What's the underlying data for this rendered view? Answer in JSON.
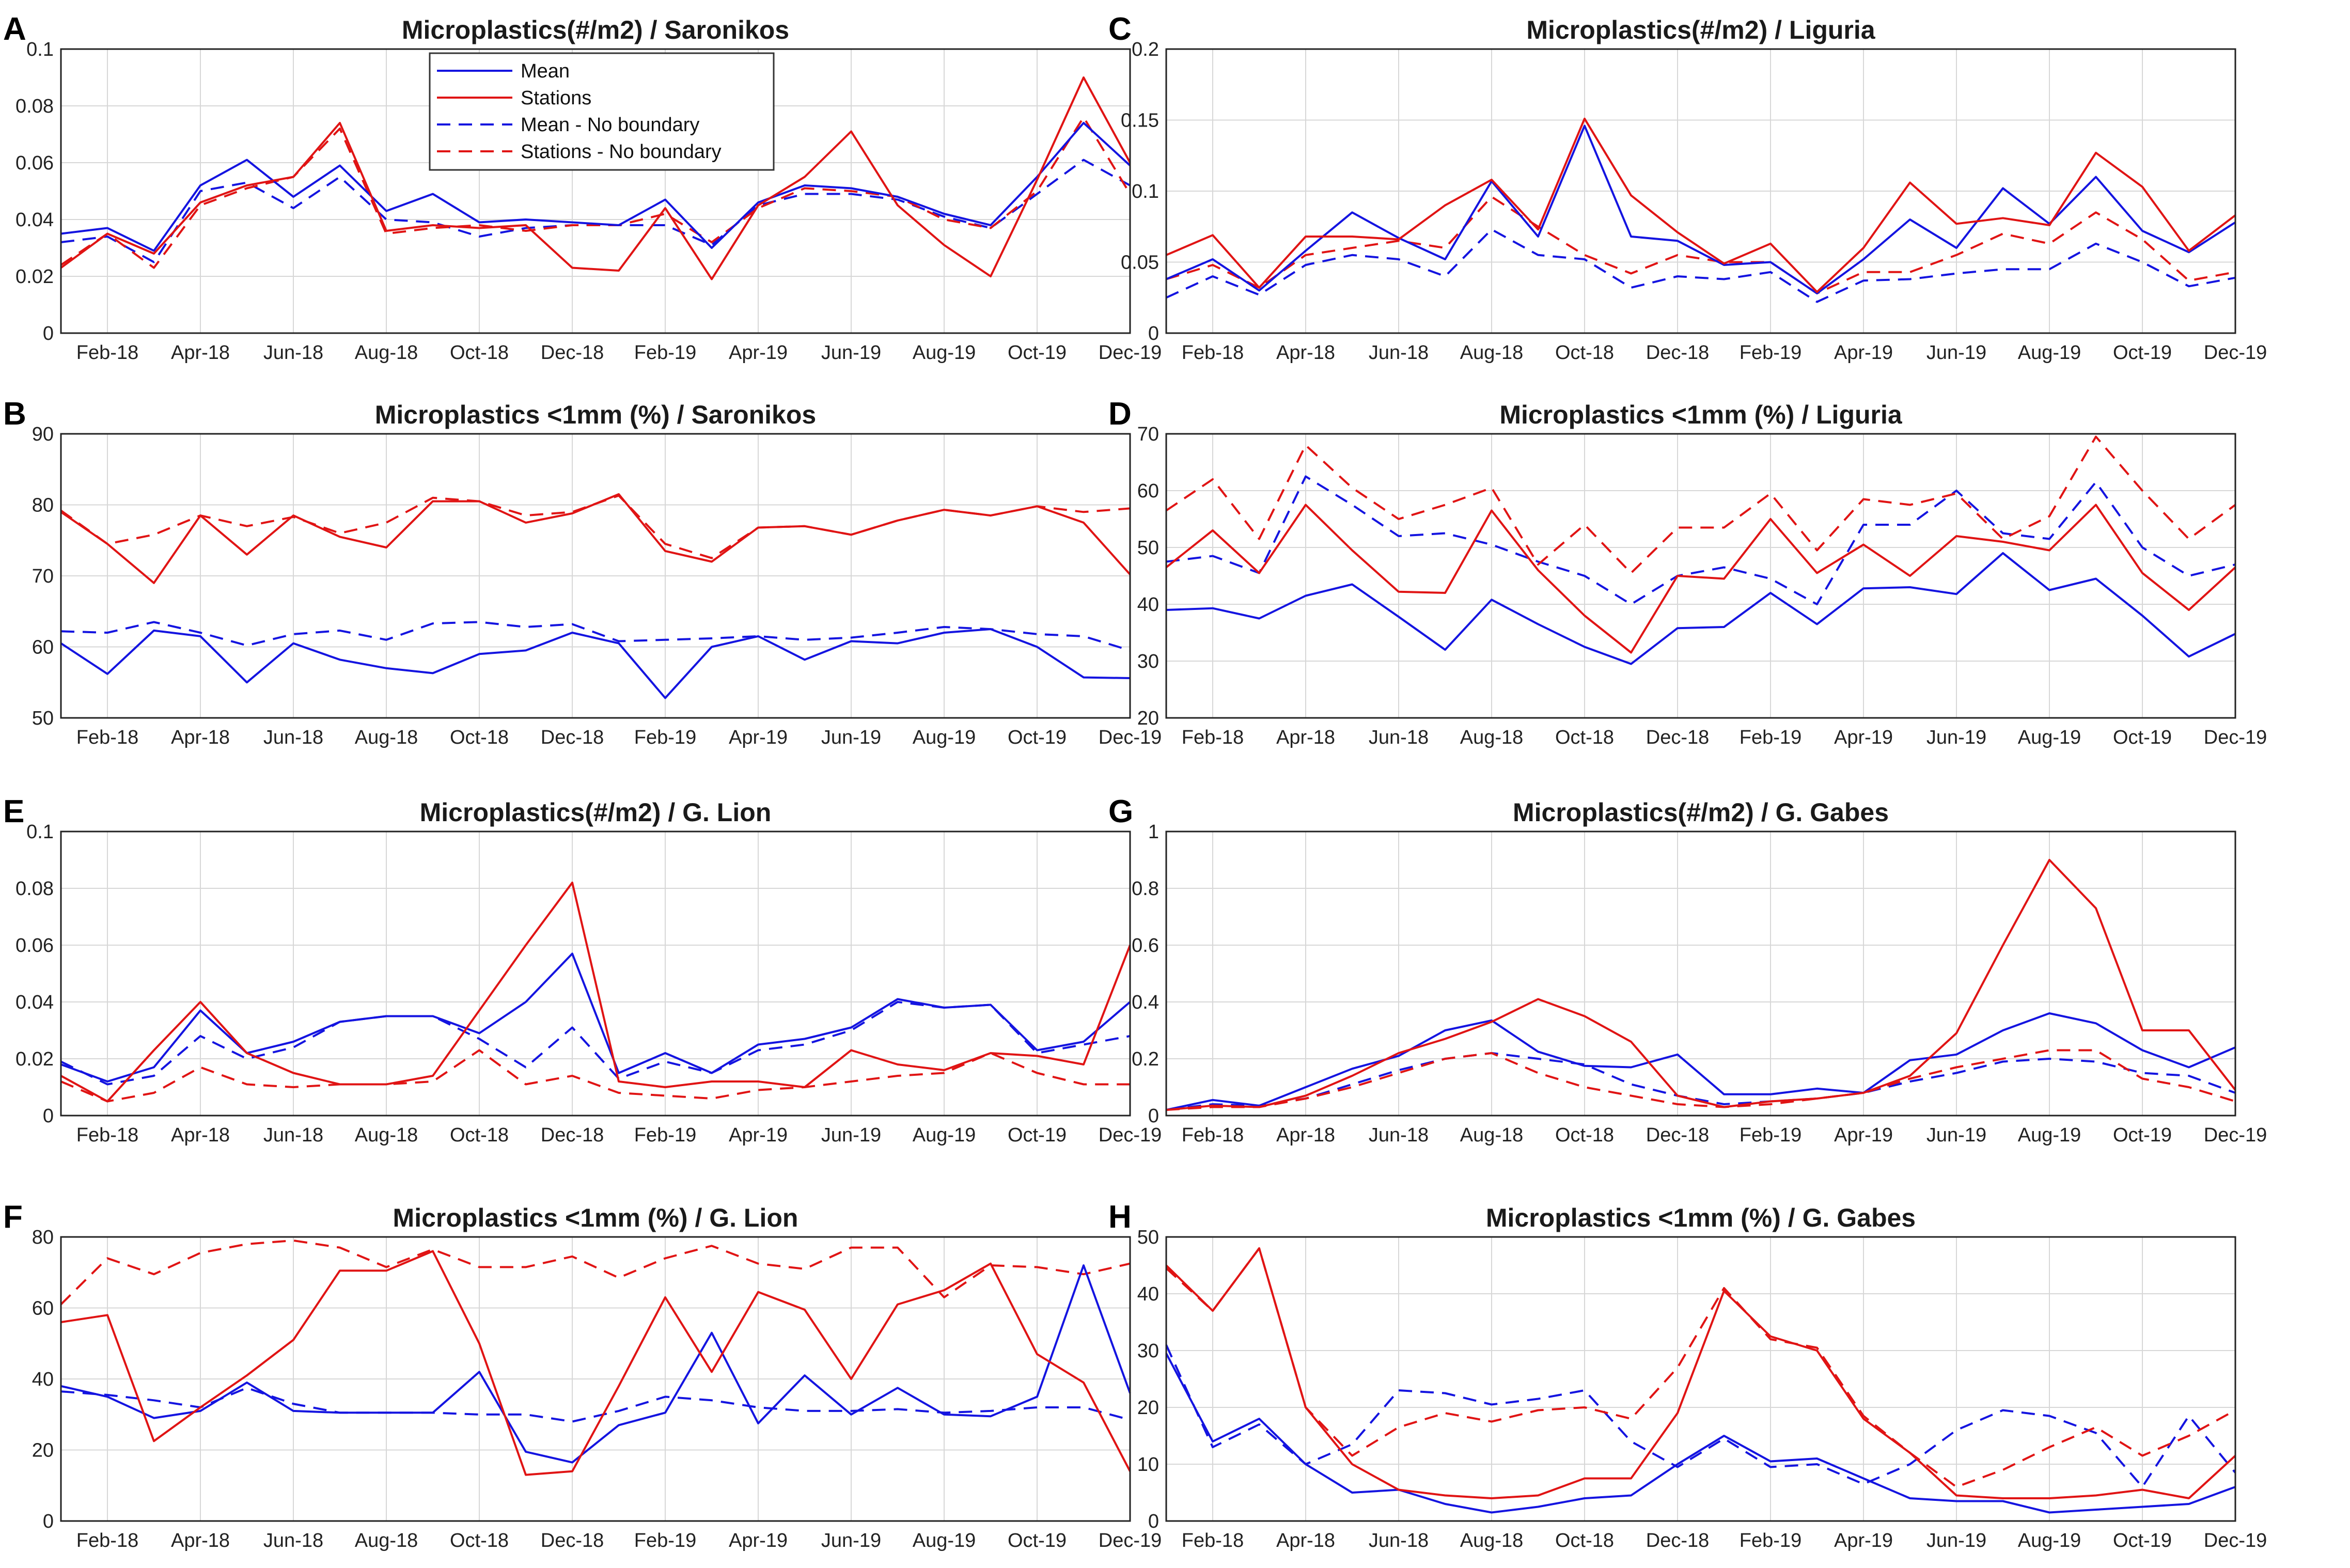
{
  "figure": {
    "x_tick_labels": [
      "Feb-18",
      "Apr-18",
      "Jun-18",
      "Aug-18",
      "Oct-18",
      "Dec-18",
      "Feb-19",
      "Apr-19",
      "Jun-19",
      "Aug-19",
      "Oct-19",
      "Dec-19"
    ],
    "colors": {
      "mean": "#1414e0",
      "stations": "#e01414"
    },
    "legend": {
      "entries": [
        "Mean",
        "Stations",
        "Mean - No boundary",
        "Stations - No boundary"
      ],
      "placement": "top-left, panel A"
    }
  },
  "chart_data": [
    {
      "letter": "A",
      "type": "line",
      "title": "Microplastics(#/m2) / Saronikos",
      "ylim": [
        0,
        0.1
      ],
      "yticks": [
        "0",
        "0.02",
        "0.04",
        "0.06",
        "0.08",
        "0.1"
      ],
      "series": [
        {
          "name": "Mean",
          "values": [
            0.035,
            0.037,
            0.029,
            0.052,
            0.061,
            0.048,
            0.059,
            0.043,
            0.049,
            0.039,
            0.04,
            0.039,
            0.038,
            0.047,
            0.03,
            0.046,
            0.052,
            0.051,
            0.048,
            0.042,
            0.038,
            0.055,
            0.074,
            0.059
          ]
        },
        {
          "name": "Stations",
          "values": [
            0.023,
            0.035,
            0.028,
            0.046,
            0.052,
            0.055,
            0.074,
            0.036,
            0.038,
            0.037,
            0.038,
            0.023,
            0.022,
            0.044,
            0.019,
            0.045,
            0.055,
            0.071,
            0.045,
            0.031,
            0.02,
            0.054,
            0.09,
            0.06
          ]
        },
        {
          "name": "Mean - No boundary",
          "values": [
            0.032,
            0.034,
            0.025,
            0.05,
            0.053,
            0.044,
            0.055,
            0.04,
            0.039,
            0.034,
            0.037,
            0.038,
            0.038,
            0.038,
            0.031,
            0.045,
            0.049,
            0.049,
            0.047,
            0.041,
            0.037,
            0.049,
            0.061,
            0.052
          ]
        },
        {
          "name": "Stations - No boundary",
          "values": [
            0.024,
            0.035,
            0.023,
            0.045,
            0.051,
            0.055,
            0.072,
            0.035,
            0.037,
            0.038,
            0.036,
            0.038,
            0.038,
            0.042,
            0.032,
            0.044,
            0.051,
            0.05,
            0.048,
            0.04,
            0.037,
            0.05,
            0.076,
            0.049
          ]
        }
      ]
    },
    {
      "letter": "C",
      "type": "line",
      "title": "Microplastics(#/m2) / Liguria",
      "ylim": [
        0,
        0.2
      ],
      "yticks": [
        "0",
        "0.05",
        "0.1",
        "0.15",
        "0.2"
      ],
      "series": [
        {
          "name": "Mean",
          "values": [
            0.038,
            0.052,
            0.03,
            0.058,
            0.085,
            0.067,
            0.052,
            0.107,
            0.068,
            0.146,
            0.068,
            0.065,
            0.048,
            0.05,
            0.028,
            0.052,
            0.08,
            0.06,
            0.102,
            0.077,
            0.11,
            0.072,
            0.057,
            0.078
          ]
        },
        {
          "name": "Stations",
          "values": [
            0.055,
            0.069,
            0.032,
            0.068,
            0.068,
            0.066,
            0.09,
            0.108,
            0.073,
            0.151,
            0.097,
            0.071,
            0.049,
            0.063,
            0.029,
            0.06,
            0.106,
            0.077,
            0.081,
            0.076,
            0.127,
            0.103,
            0.058,
            0.083
          ]
        },
        {
          "name": "Mean - No boundary",
          "values": [
            0.025,
            0.04,
            0.027,
            0.048,
            0.055,
            0.052,
            0.04,
            0.073,
            0.055,
            0.052,
            0.032,
            0.04,
            0.038,
            0.043,
            0.022,
            0.037,
            0.038,
            0.042,
            0.045,
            0.045,
            0.063,
            0.05,
            0.033,
            0.039
          ]
        },
        {
          "name": "Stations - No boundary",
          "values": [
            0.038,
            0.048,
            0.032,
            0.055,
            0.06,
            0.065,
            0.06,
            0.096,
            0.075,
            0.055,
            0.042,
            0.055,
            0.05,
            0.05,
            0.028,
            0.043,
            0.043,
            0.055,
            0.07,
            0.063,
            0.085,
            0.066,
            0.037,
            0.043
          ]
        }
      ]
    },
    {
      "letter": "B",
      "type": "line",
      "title": "Microplastics <1mm (%) / Saronikos",
      "ylim": [
        50,
        90
      ],
      "yticks": [
        "50",
        "60",
        "70",
        "80",
        "90"
      ],
      "series": [
        {
          "name": "Mean",
          "values": [
            60.5,
            56.2,
            62.3,
            61.5,
            55,
            60.5,
            58.2,
            57,
            56.3,
            59,
            59.5,
            62,
            60.5,
            52.8,
            60,
            61.5,
            58.2,
            60.8,
            60.5,
            62,
            62.5,
            60,
            55.7,
            55.6
          ]
        },
        {
          "name": "Stations",
          "values": [
            79,
            74.5,
            69,
            78.5,
            73,
            78.5,
            75.5,
            74,
            80.5,
            80.5,
            77.5,
            78.8,
            81.5,
            73.5,
            72,
            76.8,
            77,
            75.8,
            77.8,
            79.3,
            78.5,
            79.8,
            77.5,
            70.2
          ]
        },
        {
          "name": "Mean - No boundary",
          "values": [
            62.2,
            62,
            63.5,
            62,
            60.2,
            61.8,
            62.3,
            61,
            63.3,
            63.5,
            62.8,
            63.2,
            60.8,
            61,
            61.2,
            61.5,
            61,
            61.3,
            62,
            62.8,
            62.5,
            61.8,
            61.5,
            59.5
          ]
        },
        {
          "name": "Stations - No boundary",
          "values": [
            79.2,
            74.5,
            75.8,
            78.5,
            77,
            78.3,
            76,
            77.5,
            81,
            80.5,
            78.5,
            79,
            81.3,
            74.5,
            72.5,
            76.8,
            77,
            75.8,
            77.8,
            79.3,
            78.5,
            79.8,
            79,
            79.5
          ]
        }
      ]
    },
    {
      "letter": "D",
      "type": "line",
      "title": "Microplastics <1mm (%) / Liguria",
      "ylim": [
        20,
        70
      ],
      "yticks": [
        "20",
        "30",
        "40",
        "50",
        "60",
        "70"
      ],
      "series": [
        {
          "name": "Mean",
          "values": [
            39,
            39.3,
            37.5,
            41.5,
            43.5,
            37.8,
            32,
            40.8,
            36.5,
            32.5,
            29.5,
            35.8,
            36,
            42,
            36.5,
            42.8,
            43,
            41.8,
            49,
            42.5,
            44.5,
            38,
            30.8,
            34.8
          ]
        },
        {
          "name": "Stations",
          "values": [
            46.5,
            53,
            45.5,
            57.5,
            49.5,
            42.2,
            42,
            56.5,
            46,
            38,
            31.5,
            45,
            44.5,
            55,
            45.5,
            50.5,
            45,
            52,
            51,
            49.5,
            57.5,
            45.5,
            39,
            46.5
          ]
        },
        {
          "name": "Mean - No boundary",
          "values": [
            47.5,
            48.5,
            45.5,
            62.5,
            57.5,
            52,
            52.5,
            50.5,
            47.5,
            45,
            40,
            45,
            46.5,
            44.5,
            40,
            54,
            54,
            60,
            52.5,
            51.5,
            61.5,
            50,
            45,
            47
          ]
        },
        {
          "name": "Stations - No boundary",
          "values": [
            56.5,
            62,
            51.5,
            68,
            60.5,
            55,
            57.5,
            60.5,
            47,
            54,
            45.5,
            53.5,
            53.5,
            59.5,
            49.5,
            58.5,
            57.5,
            59.5,
            51.5,
            55.5,
            69.5,
            60,
            51.5,
            57.5
          ]
        }
      ]
    },
    {
      "letter": "E",
      "type": "line",
      "title": "Microplastics(#/m2) / G. Lion",
      "ylim": [
        0,
        0.1
      ],
      "yticks": [
        "0",
        "0.02",
        "0.04",
        "0.06",
        "0.08",
        "0.1"
      ],
      "series": [
        {
          "name": "Mean",
          "values": [
            0.018,
            0.012,
            0.017,
            0.037,
            0.022,
            0.026,
            0.033,
            0.035,
            0.035,
            0.029,
            0.04,
            0.057,
            0.015,
            0.022,
            0.015,
            0.025,
            0.027,
            0.031,
            0.041,
            0.038,
            0.039,
            0.023,
            0.026,
            0.04
          ]
        },
        {
          "name": "Stations",
          "values": [
            0.014,
            0.005,
            0.023,
            0.04,
            0.022,
            0.015,
            0.011,
            0.011,
            0.014,
            0.037,
            0.06,
            0.082,
            0.012,
            0.01,
            0.012,
            0.012,
            0.01,
            0.023,
            0.018,
            0.016,
            0.022,
            0.021,
            0.018,
            0.06
          ]
        },
        {
          "name": "Mean - No boundary",
          "values": [
            0.019,
            0.011,
            0.014,
            0.028,
            0.02,
            0.024,
            0.033,
            0.035,
            0.035,
            0.027,
            0.017,
            0.031,
            0.013,
            0.019,
            0.015,
            0.023,
            0.025,
            0.03,
            0.04,
            0.038,
            0.039,
            0.022,
            0.025,
            0.028
          ]
        },
        {
          "name": "Stations - No boundary",
          "values": [
            0.012,
            0.005,
            0.008,
            0.017,
            0.011,
            0.01,
            0.011,
            0.011,
            0.012,
            0.023,
            0.011,
            0.014,
            0.008,
            0.007,
            0.006,
            0.009,
            0.01,
            0.012,
            0.014,
            0.015,
            0.022,
            0.015,
            0.011,
            0.011
          ]
        }
      ]
    },
    {
      "letter": "G",
      "type": "line",
      "title": "Microplastics(#/m2) / G. Gabes",
      "ylim": [
        0,
        1
      ],
      "yticks": [
        "0",
        "0.2",
        "0.4",
        "0.6",
        "0.8",
        "1"
      ],
      "series": [
        {
          "name": "Mean",
          "values": [
            0.02,
            0.055,
            0.035,
            0.1,
            0.165,
            0.21,
            0.3,
            0.335,
            0.225,
            0.175,
            0.17,
            0.215,
            0.075,
            0.075,
            0.095,
            0.08,
            0.195,
            0.215,
            0.3,
            0.36,
            0.325,
            0.23,
            0.17,
            0.24
          ]
        },
        {
          "name": "Stations",
          "values": [
            0.02,
            0.035,
            0.03,
            0.07,
            0.14,
            0.22,
            0.27,
            0.33,
            0.41,
            0.35,
            0.26,
            0.07,
            0.03,
            0.05,
            0.06,
            0.08,
            0.14,
            0.29,
            0.6,
            0.9,
            0.73,
            0.3,
            0.3,
            0.09
          ]
        },
        {
          "name": "Mean - No boundary",
          "values": [
            0.02,
            0.04,
            0.035,
            0.06,
            0.11,
            0.16,
            0.2,
            0.22,
            0.2,
            0.18,
            0.11,
            0.07,
            0.04,
            0.05,
            0.06,
            0.08,
            0.12,
            0.15,
            0.19,
            0.2,
            0.19,
            0.15,
            0.14,
            0.08
          ]
        },
        {
          "name": "Stations - No boundary",
          "values": [
            0.02,
            0.03,
            0.03,
            0.06,
            0.1,
            0.15,
            0.2,
            0.22,
            0.15,
            0.1,
            0.07,
            0.04,
            0.03,
            0.04,
            0.06,
            0.08,
            0.13,
            0.17,
            0.2,
            0.23,
            0.23,
            0.13,
            0.1,
            0.05
          ]
        }
      ]
    },
    {
      "letter": "F",
      "type": "line",
      "title": "Microplastics <1mm (%) / G. Lion",
      "ylim": [
        0,
        80
      ],
      "yticks": [
        "0",
        "20",
        "40",
        "60",
        "80"
      ],
      "series": [
        {
          "name": "Mean",
          "values": [
            38,
            35,
            29,
            31,
            39,
            31,
            30.5,
            30.5,
            30.5,
            42,
            19.5,
            16.5,
            27,
            30.5,
            53,
            27.5,
            41,
            30,
            37.5,
            30,
            29.5,
            35,
            72,
            36
          ]
        },
        {
          "name": "Stations",
          "values": [
            56,
            58,
            22.5,
            32,
            41,
            51,
            70.5,
            70.5,
            76,
            50,
            13,
            14,
            38,
            63,
            42,
            64.5,
            59.5,
            40,
            61,
            65,
            72.5,
            47,
            39,
            14
          ]
        },
        {
          "name": "Mean - No boundary",
          "values": [
            36.5,
            35.5,
            34,
            32,
            37.5,
            33,
            30.5,
            30.5,
            30.5,
            30,
            30,
            28,
            31,
            35,
            34,
            32,
            31,
            31,
            31.5,
            30.5,
            31,
            32,
            32,
            28.5
          ]
        },
        {
          "name": "Stations - No boundary",
          "values": [
            61,
            74,
            69.5,
            75.5,
            78,
            79,
            77,
            71.5,
            76.5,
            71.5,
            71.5,
            74.5,
            68.5,
            74,
            77.5,
            72.5,
            71,
            77,
            77,
            63,
            72,
            71.5,
            69.5,
            72.5
          ]
        }
      ]
    },
    {
      "letter": "H",
      "type": "line",
      "title": "Microplastics <1mm (%) / G. Gabes",
      "ylim": [
        0,
        50
      ],
      "yticks": [
        "0",
        "10",
        "20",
        "30",
        "40",
        "50"
      ],
      "series": [
        {
          "name": "Mean",
          "values": [
            29.5,
            14,
            18,
            10,
            5,
            5.5,
            3,
            1.5,
            2.5,
            4,
            4.5,
            10,
            15,
            10.5,
            11,
            7.5,
            4,
            3.5,
            3.5,
            1.5,
            2,
            2.5,
            3,
            6
          ]
        },
        {
          "name": "Stations",
          "values": [
            45,
            37,
            48,
            20,
            10,
            5.5,
            4.5,
            4,
            4.5,
            7.5,
            7.5,
            19,
            40.5,
            32.5,
            30,
            18,
            12,
            4.5,
            4,
            4,
            4.5,
            5.5,
            4,
            11.5
          ]
        },
        {
          "name": "Mean - No boundary",
          "values": [
            31,
            13,
            17,
            10,
            13.5,
            23,
            22.5,
            20.5,
            21.5,
            23,
            14,
            9.5,
            14.5,
            9.5,
            10,
            6.5,
            10,
            16,
            19.5,
            18.5,
            15.5,
            6,
            18.5,
            8.5
          ]
        },
        {
          "name": "Stations - No boundary",
          "values": [
            44.5,
            37,
            48,
            20,
            11.5,
            16.5,
            19,
            17.5,
            19.5,
            20,
            18,
            27,
            41,
            32,
            30.5,
            18.5,
            12,
            6,
            9,
            13,
            16.5,
            11.5,
            15,
            19.5
          ]
        }
      ]
    }
  ]
}
